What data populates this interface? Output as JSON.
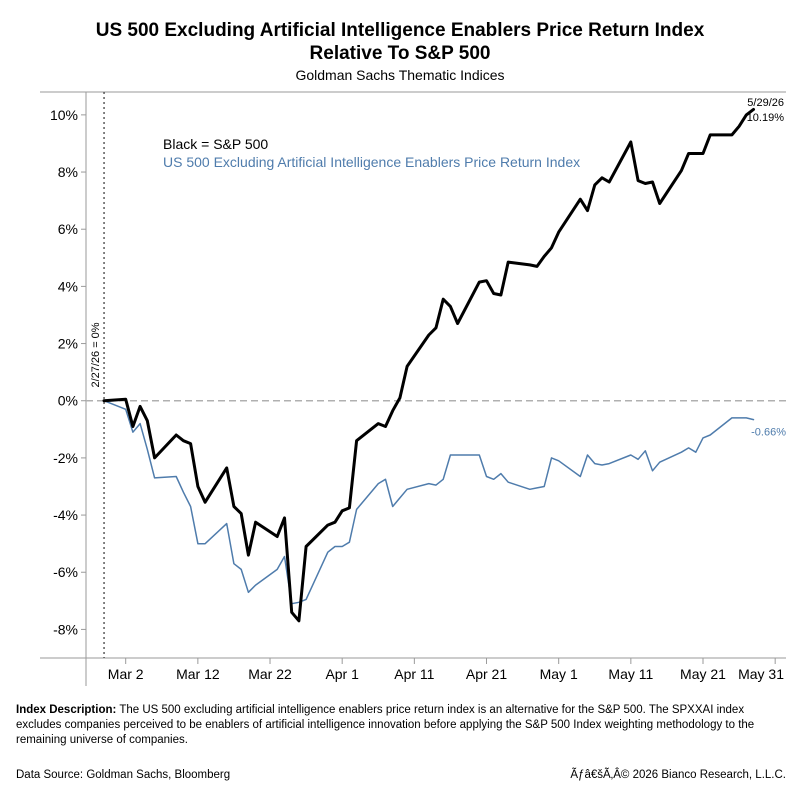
{
  "header": {
    "title_line1": "US 500 Excluding Artificial Intelligence Enablers Price Return Index",
    "title_line2": "Relative To S&P 500",
    "subtitle": "Goldman Sachs Thematic Indices"
  },
  "description": {
    "label": "Index Description:",
    "text": " The US 500 excluding artificial intelligence enablers price return index is an alternative for the S&P 500. The SPXXAI index excludes companies perceived to be enablers of artificial intelligence innovation before applying the S&P 500 Index weighting methodology to the remaining universe of companies."
  },
  "footer": {
    "source": "Data Source: Goldman Sachs, Bloomberg",
    "copyright": "Ãƒâ€šÃ‚Â© 2026 Bianco Research, L.L.C."
  },
  "colors": {
    "sp500": "#000000",
    "spxxai": "#4f7cac",
    "zero_line": "#b0b0b0",
    "axis": "#9a9a9a"
  },
  "chart_data": {
    "type": "line",
    "legend": {
      "line1": "Black = S&P 500",
      "line2": "US 500 Excluding Artificial Intelligence Enablers Price Return Index",
      "placement": "top-left"
    },
    "ylim": [
      -9,
      10.8
    ],
    "y_ticks": [
      10,
      8,
      6,
      4,
      2,
      0,
      -2,
      -4,
      -6,
      -8
    ],
    "y_tick_labels": [
      "10%",
      "8%",
      "6%",
      "4%",
      "2%",
      "0%",
      "-2%",
      "-4%",
      "-6%",
      "-8%"
    ],
    "x_tick_labels": [
      "Mar 2",
      "Mar 12",
      "Mar 22",
      "Apr 1",
      "Apr 11",
      "Apr 21",
      "May 1",
      "May 11",
      "May 21",
      "May 31"
    ],
    "x_tick_positions": [
      3,
      13,
      23,
      33,
      43,
      53,
      63,
      73,
      83,
      93
    ],
    "xlim": [
      -2.5,
      94.5
    ],
    "vline": {
      "x": 0,
      "label": "2/27/26 = 0%"
    },
    "end_annotation": {
      "date": "5/29/26",
      "value_label": "10.19%",
      "blue_label": "-0.66%"
    },
    "series": [
      {
        "name": "S&P 500",
        "x": [
          0,
          3,
          4,
          5,
          6,
          7,
          10,
          11,
          12,
          13,
          14,
          17,
          18,
          19,
          20,
          21,
          24,
          25,
          26,
          27,
          28,
          31,
          32,
          33,
          34,
          35,
          38,
          39,
          40,
          41,
          42,
          45,
          46,
          47,
          48,
          49,
          52,
          53,
          54,
          55,
          56,
          59,
          60,
          61,
          62,
          63,
          66,
          67,
          68,
          69,
          70,
          73,
          74,
          75,
          76,
          77,
          80,
          81,
          82,
          83,
          84,
          87,
          88,
          89,
          90
        ],
        "y": [
          0,
          0.05,
          -0.9,
          -0.2,
          -0.7,
          -2.0,
          -1.2,
          -1.4,
          -1.5,
          -3.0,
          -3.55,
          -2.35,
          -3.7,
          -3.95,
          -5.4,
          -4.25,
          -4.75,
          -4.1,
          -7.4,
          -7.7,
          -5.1,
          -4.35,
          -4.25,
          -3.85,
          -3.75,
          -1.4,
          -0.8,
          -0.9,
          -0.35,
          0.1,
          1.2,
          2.3,
          2.55,
          3.55,
          3.3,
          2.7,
          4.15,
          4.2,
          3.75,
          3.7,
          4.85,
          4.75,
          4.7,
          5.05,
          5.35,
          5.9,
          7.05,
          6.65,
          7.55,
          7.8,
          7.65,
          9.05,
          7.7,
          7.6,
          7.65,
          6.9,
          8.05,
          8.65,
          8.65,
          8.65,
          9.3,
          9.3,
          9.6,
          10.0,
          10.19
        ]
      },
      {
        "name": "US 500 Excluding Artificial Intelligence Enablers Price Return Index",
        "x": [
          0,
          3,
          4,
          5,
          6,
          7,
          10,
          11,
          12,
          13,
          14,
          17,
          18,
          19,
          20,
          21,
          24,
          25,
          26,
          27,
          28,
          31,
          32,
          33,
          34,
          35,
          38,
          39,
          40,
          41,
          42,
          45,
          46,
          47,
          48,
          49,
          52,
          53,
          54,
          55,
          56,
          59,
          60,
          61,
          62,
          63,
          66,
          67,
          68,
          69,
          70,
          73,
          74,
          75,
          76,
          77,
          80,
          81,
          82,
          83,
          84,
          87,
          88,
          89,
          90
        ],
        "y": [
          0,
          -0.3,
          -1.1,
          -0.8,
          -1.7,
          -2.7,
          -2.65,
          -3.2,
          -3.7,
          -5.0,
          -5.0,
          -4.3,
          -5.7,
          -5.9,
          -6.7,
          -6.45,
          -5.9,
          -5.45,
          -7.1,
          -7.05,
          -6.95,
          -5.3,
          -5.1,
          -5.1,
          -4.95,
          -3.8,
          -2.9,
          -2.75,
          -3.7,
          -3.4,
          -3.1,
          -2.9,
          -2.95,
          -2.75,
          -1.9,
          -1.9,
          -1.9,
          -2.65,
          -2.75,
          -2.55,
          -2.85,
          -3.1,
          -3.05,
          -3.0,
          -2.0,
          -2.1,
          -2.65,
          -1.9,
          -2.2,
          -2.25,
          -2.2,
          -1.9,
          -2.05,
          -1.75,
          -2.45,
          -2.15,
          -1.8,
          -1.65,
          -1.8,
          -1.3,
          -1.2,
          -0.6,
          -0.6,
          -0.6,
          -0.66
        ]
      }
    ]
  }
}
